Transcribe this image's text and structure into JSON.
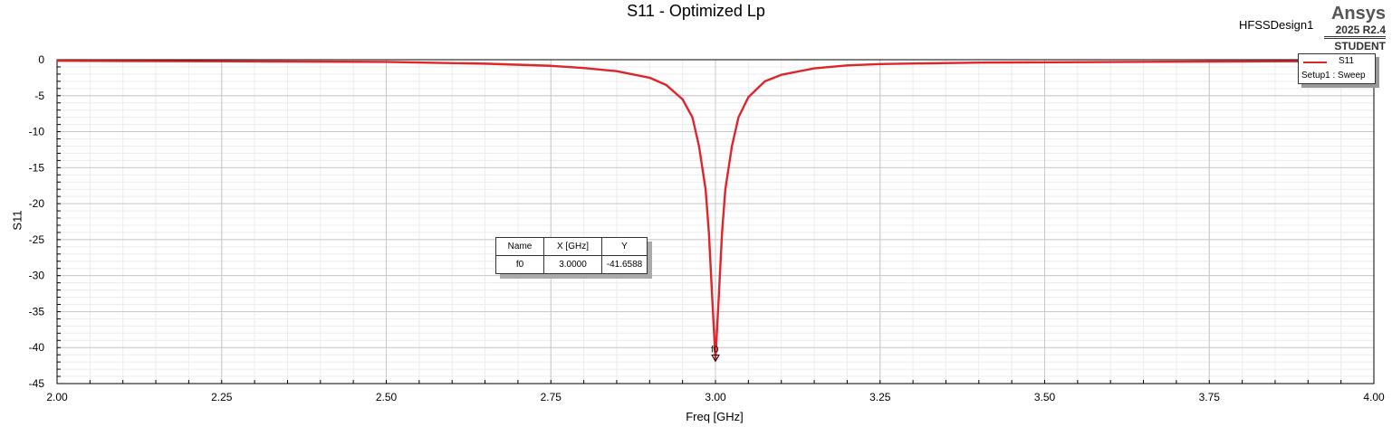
{
  "design_name": "HFSSDesign1",
  "brand": {
    "name": "Ansys",
    "version": "2025 R2.4",
    "edition": "STUDENT"
  },
  "legend": {
    "series_name": "S11",
    "setup": "Setup1 : Sweep"
  },
  "marker_table": {
    "headers": [
      "Name",
      "X [GHz]",
      "Y"
    ],
    "rows": [
      [
        "f0",
        "3.0000",
        "-41.6588"
      ]
    ],
    "marker_label": "f0"
  },
  "colors": {
    "series": "#e0242c",
    "grid": "#c8c8c8",
    "minor_grid": "#ececec"
  },
  "chart_data": {
    "type": "line",
    "title": "S11 - Optimized Lp",
    "xlabel": "Freq [GHz]",
    "ylabel": "S11",
    "xlim": [
      2.0,
      4.0
    ],
    "ylim": [
      -45,
      0
    ],
    "x_ticks": [
      "2.00",
      "2.25",
      "2.50",
      "2.75",
      "3.00",
      "3.25",
      "3.50",
      "3.75",
      "4.00"
    ],
    "y_ticks": [
      "0",
      "-5",
      "-10",
      "-15",
      "-20",
      "-25",
      "-30",
      "-35",
      "-40",
      "-45"
    ],
    "grid": true,
    "legend_position": "top-right",
    "series": [
      {
        "name": "S11",
        "x": [
          2.0,
          2.5,
          2.65,
          2.75,
          2.8,
          2.85,
          2.9,
          2.925,
          2.95,
          2.965,
          2.975,
          2.985,
          2.99,
          2.995,
          3.0,
          3.005,
          3.01,
          3.015,
          3.025,
          3.035,
          3.05,
          3.075,
          3.1,
          3.15,
          3.2,
          3.25,
          3.4,
          3.75,
          4.0
        ],
        "y": [
          -0.15,
          -0.3,
          -0.55,
          -0.85,
          -1.15,
          -1.6,
          -2.5,
          -3.5,
          -5.5,
          -8,
          -12,
          -18,
          -24,
          -33,
          -41.6588,
          -33,
          -24,
          -18,
          -12,
          -8,
          -5.2,
          -3,
          -2.1,
          -1.2,
          -0.8,
          -0.6,
          -0.4,
          -0.25,
          -0.2
        ]
      }
    ],
    "markers": [
      {
        "name": "f0",
        "x": 3.0,
        "y": -41.6588
      }
    ]
  }
}
